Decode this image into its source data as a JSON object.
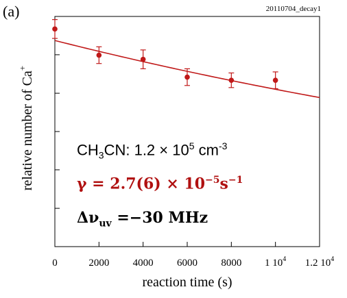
{
  "panel_label": "(a)",
  "run_id": "20110704_decay1",
  "colors": {
    "series": "#c01818",
    "fit": "#c01818",
    "axis": "#000000"
  },
  "chart_data": {
    "type": "scatter",
    "xlabel": "reaction time (s)",
    "ylabel": "relative number of Ca",
    "ylabel_superscript": "+",
    "xlim": [
      0,
      12000
    ],
    "ylim": [
      0,
      1.1
    ],
    "x_ticks": [
      {
        "value": 0,
        "label": "0"
      },
      {
        "value": 2000,
        "label": "2000"
      },
      {
        "value": 4000,
        "label": "4000"
      },
      {
        "value": 6000,
        "label": "6000"
      },
      {
        "value": 8000,
        "label": "8000"
      },
      {
        "value": 10000,
        "label": "1 10",
        "sup": "4"
      },
      {
        "value": 12000,
        "label": "1.2 10",
        "sup": "4"
      }
    ],
    "y_ticks": [
      0.183,
      0.367,
      0.55,
      0.733,
      0.917
    ],
    "points": [
      {
        "x": 0,
        "y": 1.04,
        "err": 0.045
      },
      {
        "x": 2000,
        "y": 0.915,
        "err": 0.04
      },
      {
        "x": 4000,
        "y": 0.895,
        "err": 0.045
      },
      {
        "x": 6000,
        "y": 0.81,
        "err": 0.04
      },
      {
        "x": 8000,
        "y": 0.795,
        "err": 0.035
      },
      {
        "x": 10000,
        "y": 0.795,
        "err": 0.04
      }
    ],
    "fit": {
      "type": "exponential",
      "a": 0.985,
      "gamma": 2.7e-05,
      "x_range": [
        0,
        12000
      ]
    }
  },
  "annotations": {
    "line1": {
      "prefix": "CH",
      "sub": "3",
      "mid": "CN: 1.2 × 10",
      "sup1": "5",
      "unit": " cm",
      "sup2": "-3"
    },
    "line2": {
      "lead": "γ = 2.7(6) × 10",
      "sup1": "−5",
      "unit": "s",
      "sup2": "−1"
    },
    "line3": {
      "lead": "Δν",
      "sub": "uv",
      "rest": " =−30  MHz"
    }
  }
}
